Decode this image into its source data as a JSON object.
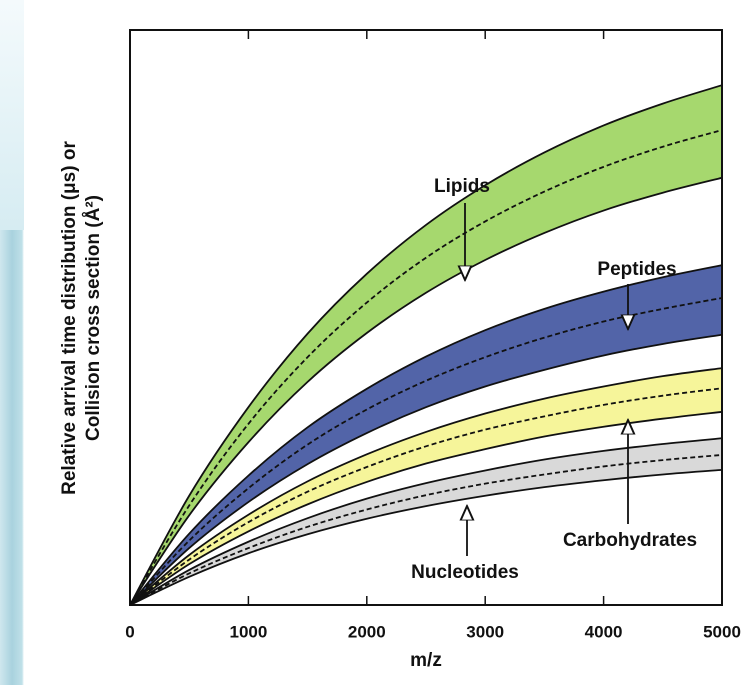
{
  "chart_data": {
    "type": "band",
    "xlabel": "m/z",
    "ylabel": [
      "Relative arrival time distribution (μs) or",
      "Collision cross section (Å²)"
    ],
    "x": [
      0,
      500,
      1000,
      1500,
      2000,
      2500,
      3000,
      3500,
      4000,
      4500,
      5000
    ],
    "xlim": [
      0,
      5000
    ],
    "xticks": [
      0,
      1000,
      2000,
      3000,
      4000,
      5000
    ],
    "ylim": [
      0,
      100
    ],
    "bands": [
      {
        "name": "Lipids",
        "color": "#a6d86e",
        "upper": [
          0,
          19.0,
          34.4,
          47.2,
          57.6,
          66.1,
          73.0,
          78.7,
          83.4,
          87.2,
          90.4
        ],
        "mid": [
          0,
          17.3,
          31.5,
          43.1,
          52.6,
          60.4,
          66.7,
          71.9,
          76.2,
          79.7,
          82.6
        ],
        "lower": [
          0,
          15.6,
          28.3,
          38.8,
          47.3,
          54.3,
          60.0,
          64.7,
          68.6,
          71.7,
          74.3
        ]
      },
      {
        "name": "Peptides",
        "color": "#5264a8",
        "upper": [
          0,
          12.4,
          22.5,
          30.9,
          37.6,
          43.2,
          47.8,
          51.5,
          54.5,
          57.0,
          59.1
        ],
        "mid": [
          0,
          11.2,
          20.3,
          27.9,
          34.0,
          39.0,
          43.1,
          46.5,
          49.3,
          51.5,
          53.4
        ],
        "lower": [
          0,
          9.9,
          17.9,
          24.5,
          29.9,
          34.4,
          38.0,
          40.9,
          43.4,
          45.4,
          47.0
        ]
      },
      {
        "name": "Carbohydrates",
        "color": "#f6f59a",
        "upper": [
          0,
          8.7,
          15.7,
          21.5,
          26.2,
          30.1,
          33.3,
          35.9,
          38.0,
          39.8,
          41.2
        ],
        "mid": [
          0,
          7.9,
          14.4,
          19.7,
          24.0,
          27.6,
          30.5,
          32.8,
          34.8,
          36.4,
          37.7
        ],
        "lower": [
          0,
          7.1,
          12.8,
          17.5,
          21.4,
          24.6,
          27.1,
          29.3,
          31.0,
          32.4,
          33.6
        ]
      },
      {
        "name": "Nucleotides",
        "color": "#d9d9d9",
        "upper": [
          0,
          6.1,
          11.0,
          15.1,
          18.5,
          21.2,
          23.4,
          25.3,
          26.8,
          28.0,
          29.0
        ],
        "mid": [
          0,
          5.5,
          9.9,
          13.6,
          16.6,
          19.1,
          21.1,
          22.7,
          24.1,
          25.2,
          26.1
        ],
        "lower": [
          0,
          4.9,
          9.0,
          12.3,
          15.0,
          17.2,
          19.0,
          20.5,
          21.7,
          22.7,
          23.5
        ]
      }
    ]
  }
}
